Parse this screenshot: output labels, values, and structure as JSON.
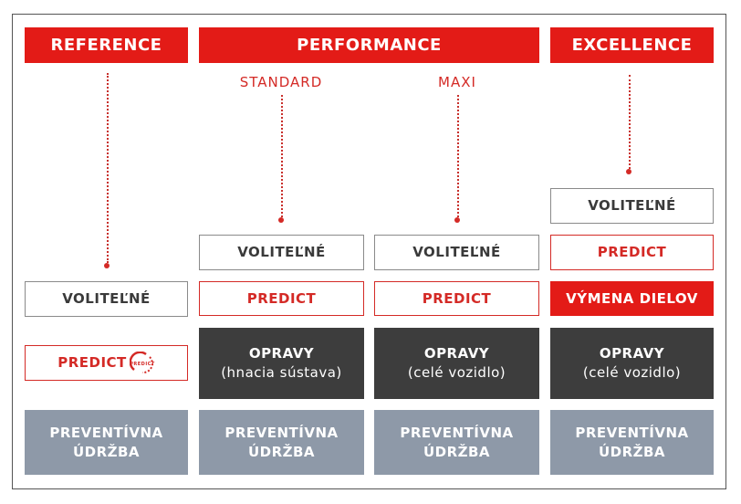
{
  "headers": {
    "reference": "REFERENCE",
    "performance": "PERFORMANCE",
    "excellence": "EXCELLENCE"
  },
  "subtitles": {
    "standard": "STANDARD",
    "maxi": "MAXI"
  },
  "labels": {
    "optional": "VOLITEĽNÉ",
    "predict": "PREDICT",
    "predict_logo": "PREDICT",
    "parts_exchange": "VÝMENA DIELOV",
    "repairs": "OPRAVY",
    "repairs_powertrain": "(hnacia sústava)",
    "repairs_vehicle": "(celé vozidlo)",
    "maintenance_1": "PREVENTÍVNA",
    "maintenance_2": "ÚDRŽBA"
  },
  "colors": {
    "red": "#e31b17",
    "dark": "#3d3d3d",
    "gray": "#8e99a8"
  }
}
